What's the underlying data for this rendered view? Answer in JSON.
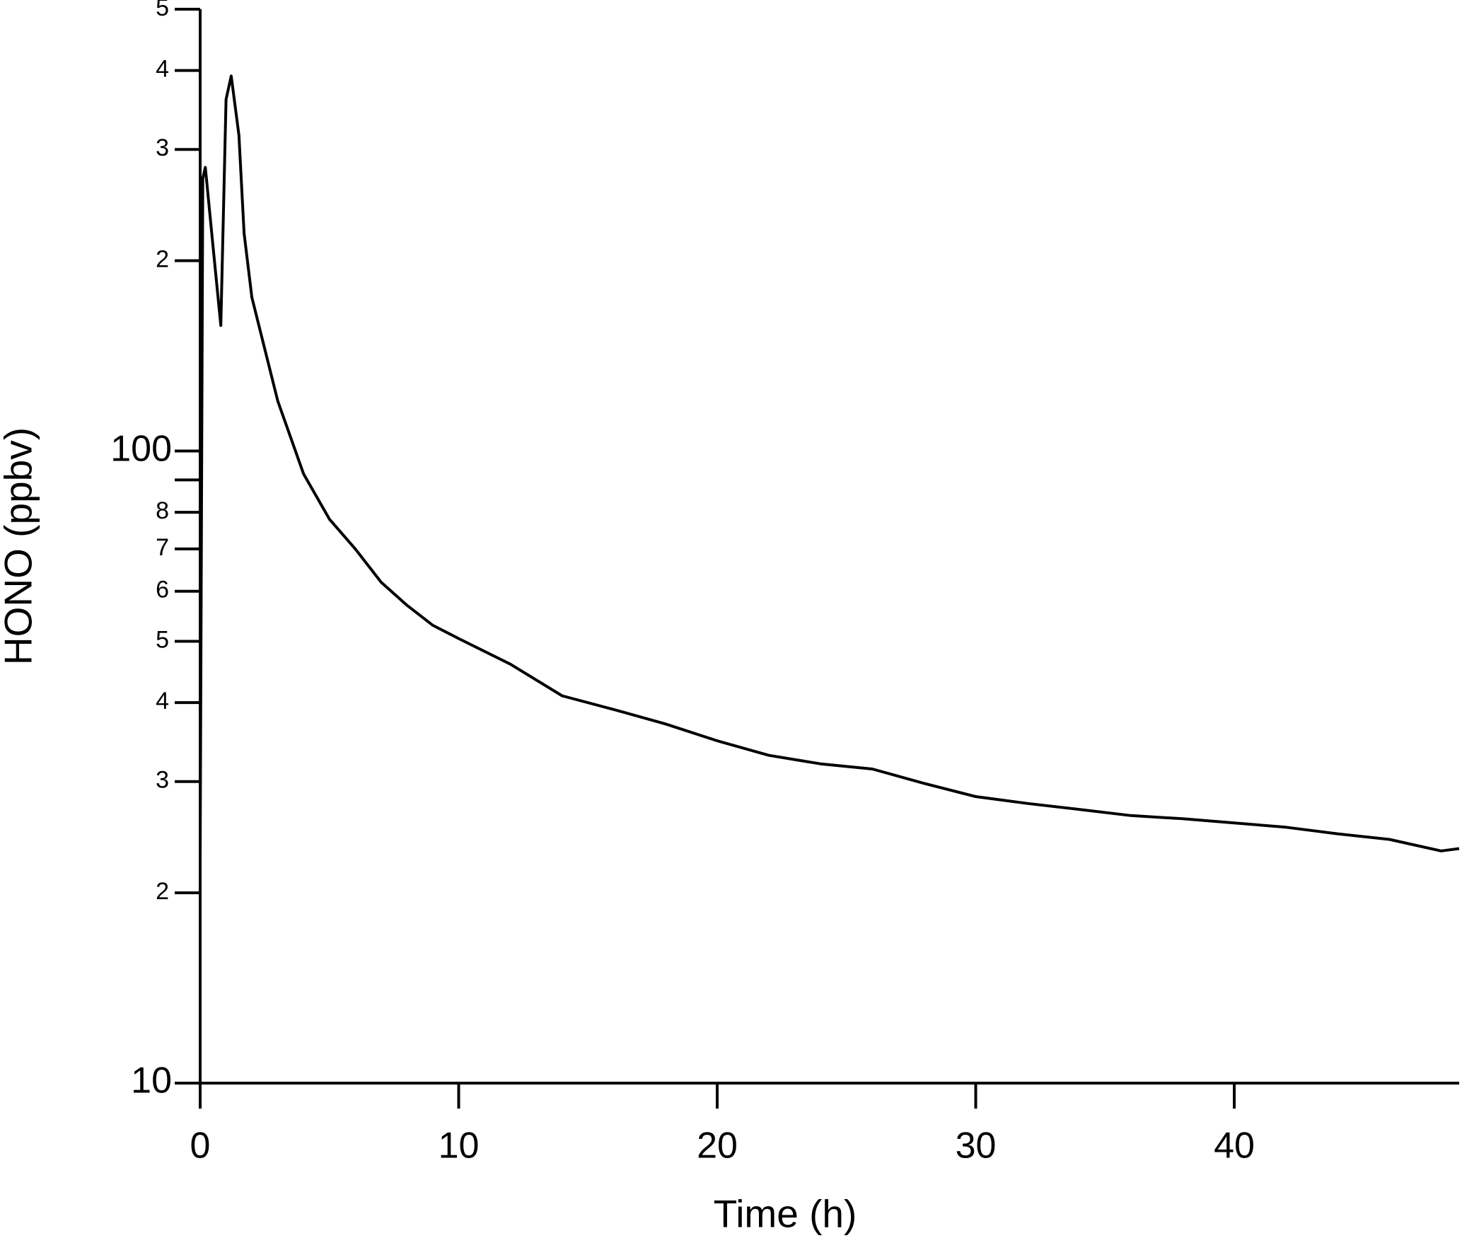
{
  "chart_data": {
    "type": "line",
    "xlabel": "Time (h)",
    "ylabel": "HONO (ppbv)",
    "x": [
      0,
      0.1,
      0.2,
      0.5,
      0.8,
      1.0,
      1.2,
      1.5,
      1.7,
      2,
      3,
      4,
      5,
      6,
      7,
      8,
      9,
      10,
      12,
      14,
      16,
      18,
      20,
      22,
      24,
      26,
      28,
      30,
      32,
      34,
      36,
      38,
      40,
      42,
      44,
      46,
      48,
      48.7
    ],
    "series": [
      {
        "name": "HONO",
        "color": "#000000",
        "values": [
          23,
          270,
          281,
          210,
          158,
          360,
          392,
          316,
          221,
          175,
          120,
          92,
          78,
          70,
          62,
          57,
          53,
          50.5,
          46,
          41,
          39,
          37,
          34.8,
          33,
          32,
          31.4,
          29.8,
          28.4,
          27.7,
          27.1,
          26.5,
          26.2,
          25.8,
          25.4,
          24.8,
          24.3,
          23.3,
          23.5
        ]
      }
    ],
    "xlim": [
      0,
      48.7
    ],
    "xticks": [
      0,
      10,
      20,
      30,
      40
    ],
    "ylim": [
      10,
      500
    ],
    "log_y": true,
    "yticks": [
      10,
      {
        "value": 20,
        "label": "2"
      },
      {
        "value": 30,
        "label": "3"
      },
      {
        "value": 40,
        "label": "4"
      },
      {
        "value": 50,
        "label": "5"
      },
      {
        "value": 60,
        "label": "6"
      },
      {
        "value": 70,
        "label": "7"
      },
      {
        "value": 80,
        "label": "8"
      },
      {
        "value": 90,
        "label": null
      },
      100,
      {
        "value": 200,
        "label": "2"
      },
      {
        "value": 300,
        "label": "3"
      },
      {
        "value": 400,
        "label": "4"
      },
      {
        "value": 500,
        "label": "5"
      }
    ],
    "grid": false
  }
}
